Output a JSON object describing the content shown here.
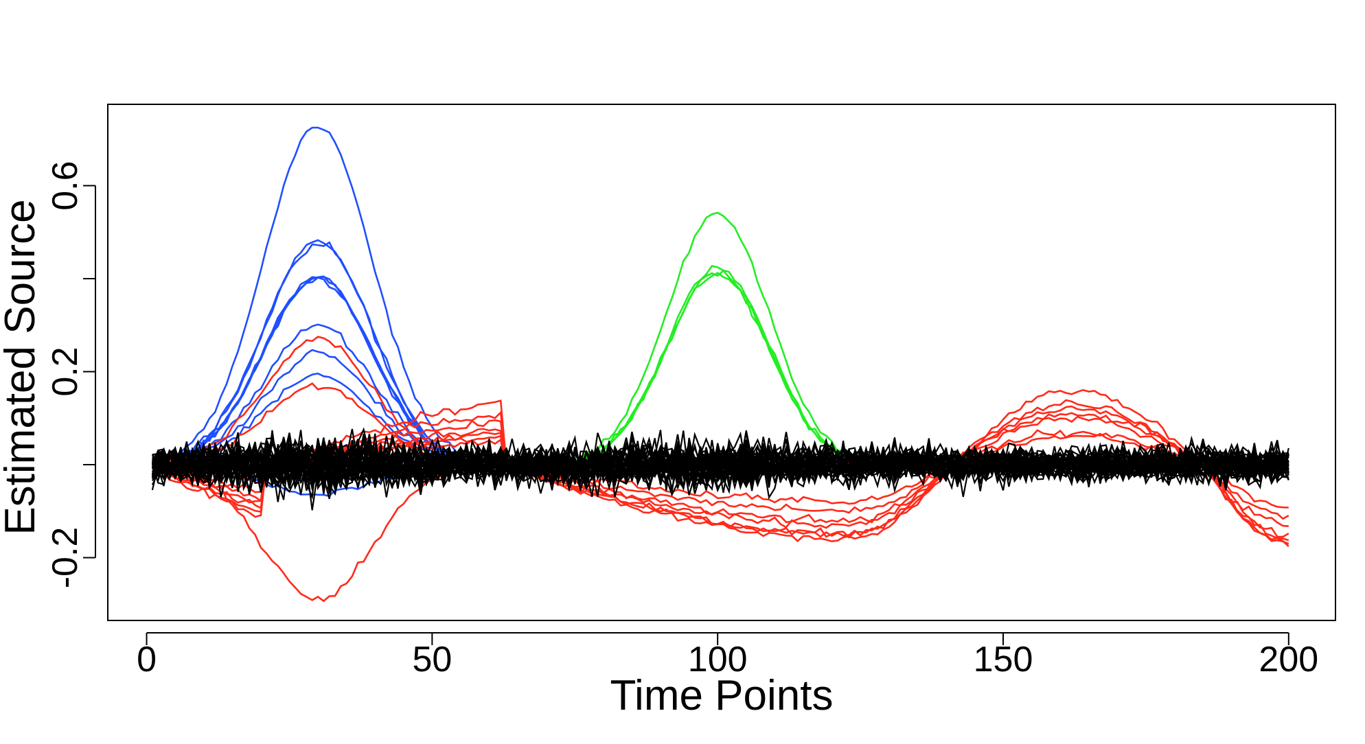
{
  "chart_data": {
    "type": "line",
    "title": "",
    "xlabel": "Time Points",
    "ylabel": "Estimated Source",
    "xlim": [
      -6.8,
      208.2
    ],
    "ylim": [
      -0.335,
      0.775
    ],
    "xticks": [
      0,
      50,
      100,
      150,
      200
    ],
    "xtick_labels": [
      "0",
      "50",
      "100",
      "150",
      "200"
    ],
    "yticks": [
      -0.2,
      0.2,
      0.6
    ],
    "ytick_labels": [
      "-0.2",
      "0.2",
      "0.6"
    ],
    "ytick_minor": [
      0.0,
      0.4
    ],
    "grid": false,
    "legend": "none",
    "colors": {
      "red": "#ff2a1a",
      "blue": "#1f4fff",
      "green": "#22ee22",
      "black": "#000000"
    },
    "series_groups": [
      {
        "color": "blue",
        "shape": "gaussian",
        "center": 30,
        "width": 9.5,
        "x_range": [
          1,
          200
        ],
        "peaks": [
          0.73,
          0.48,
          0.48,
          0.405,
          0.4,
          0.4,
          0.3,
          0.24,
          0.19,
          -0.065
        ]
      },
      {
        "color": "green",
        "shape": "gaussian",
        "center": 100,
        "width": 9,
        "x_range": [
          1,
          200
        ],
        "peaks": [
          0.54,
          0.425,
          0.415,
          0.41
        ]
      },
      {
        "color": "red",
        "shape": "gaussian",
        "center": 30,
        "width": 9.5,
        "x_range": [
          1,
          200
        ],
        "peaks": [
          0.27,
          0.17,
          -0.29
        ]
      },
      {
        "color": "red",
        "shape": "wave",
        "x_range": [
          1,
          200
        ],
        "zeros": [
          0,
          20,
          62,
          141,
          185
        ],
        "peak_x": [
          5,
          45,
          85,
          123,
          162,
          200
        ],
        "extrema": [
          [
            0.16,
            -0.13,
            0.16,
            -0.13,
            0.16,
            -0.17
          ],
          [
            0.14,
            -0.11,
            0.13,
            -0.12,
            0.12,
            -0.15
          ],
          [
            0.12,
            -0.14,
            0.11,
            -0.16,
            0.11,
            -0.17
          ],
          [
            0.1,
            -0.17,
            0.09,
            -0.15,
            0.1,
            -0.13
          ],
          [
            0.08,
            -0.09,
            0.08,
            -0.08,
            0.07,
            -0.09
          ],
          [
            0.07,
            -0.16,
            0.06,
            -0.1,
            0.13,
            -0.16
          ],
          [
            0.05,
            -0.05,
            0.07,
            -0.15,
            0.06,
            -0.11
          ]
        ]
      },
      {
        "color": "black",
        "shape": "noise",
        "x_range": [
          1,
          200
        ],
        "count": 40,
        "noise_sd": 0.018,
        "seed": 7
      }
    ]
  }
}
